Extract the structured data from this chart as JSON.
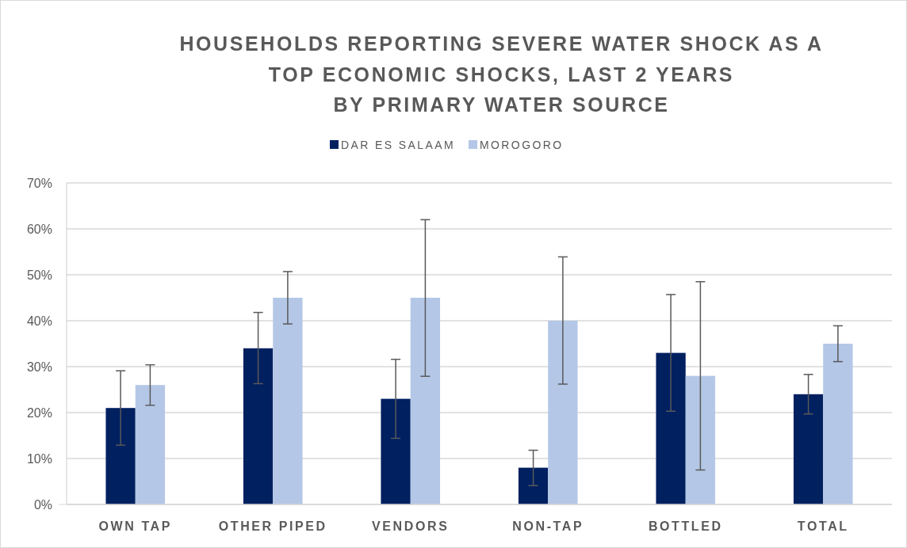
{
  "chart_data": {
    "type": "bar",
    "title": "HOUSEHOLDS REPORTING SEVERE WATER SHOCK AS A\nTOP ECONOMIC SHOCKS, LAST 2 YEARS\nBY PRIMARY WATER SOURCE",
    "categories": [
      "OWN TAP",
      "OTHER PIPED",
      "VENDORS",
      "NON-TAP",
      "BOTTLED",
      "TOTAL"
    ],
    "series": [
      {
        "name": "DAR ES SALAAM",
        "color": "#002060",
        "values": [
          21,
          34,
          23,
          8,
          33,
          24
        ],
        "errors": [
          [
            12.9,
            29.1
          ],
          [
            26.3,
            41.8
          ],
          [
            14.4,
            31.6
          ],
          [
            4.1,
            11.8
          ],
          [
            20.3,
            45.7
          ],
          [
            19.7,
            28.3
          ]
        ]
      },
      {
        "name": "MOROGORO",
        "color": "#b4c7e7",
        "values": [
          26,
          45,
          45,
          40,
          28,
          35
        ],
        "errors": [
          [
            21.6,
            30.4
          ],
          [
            39.3,
            50.7
          ],
          [
            27.9,
            62
          ],
          [
            26.2,
            53.9
          ],
          [
            7.5,
            48.5
          ],
          [
            31.1,
            38.9
          ]
        ]
      }
    ],
    "ylim": [
      0,
      70
    ],
    "yticks": [
      {
        "value": 0,
        "label": "0%"
      },
      {
        "value": 10,
        "label": "10%"
      },
      {
        "value": 20,
        "label": "20%"
      },
      {
        "value": 30,
        "label": "30%"
      },
      {
        "value": 40,
        "label": "40%"
      },
      {
        "value": 50,
        "label": "50%"
      },
      {
        "value": 60,
        "label": "60%"
      },
      {
        "value": 70,
        "label": "70%"
      }
    ],
    "grid": "y",
    "legend": "top"
  }
}
